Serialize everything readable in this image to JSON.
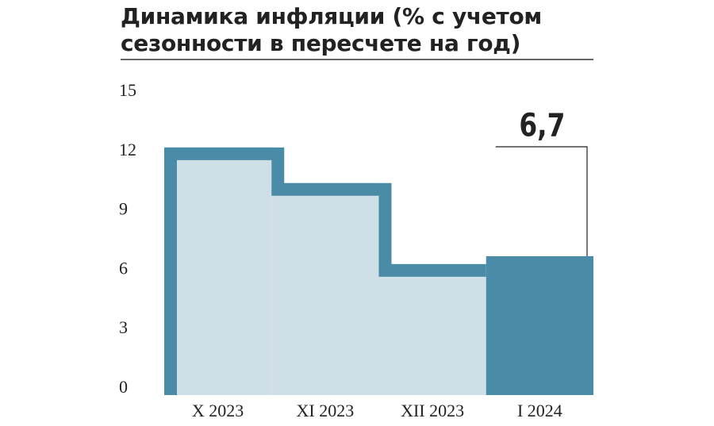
{
  "chart_data": {
    "type": "bar",
    "title": "Динамика инфляции (% с учетом сезонности в пересчете на год)",
    "categories": [
      "X 2023",
      "XI 2023",
      "XII 2023",
      "I 2024"
    ],
    "values": [
      12.2,
      10.4,
      6.3,
      6.7
    ],
    "value_labels": [
      null,
      null,
      null,
      "6,7"
    ],
    "colors": [
      "#cfdfe8",
      "#cfdfe8",
      "#cfdfe8",
      "#4a8ca8"
    ],
    "outline_color": "#4a8ca8",
    "ylim": [
      0,
      15
    ],
    "yticks": [
      0,
      3,
      6,
      9,
      12,
      15
    ],
    "grid": false
  }
}
